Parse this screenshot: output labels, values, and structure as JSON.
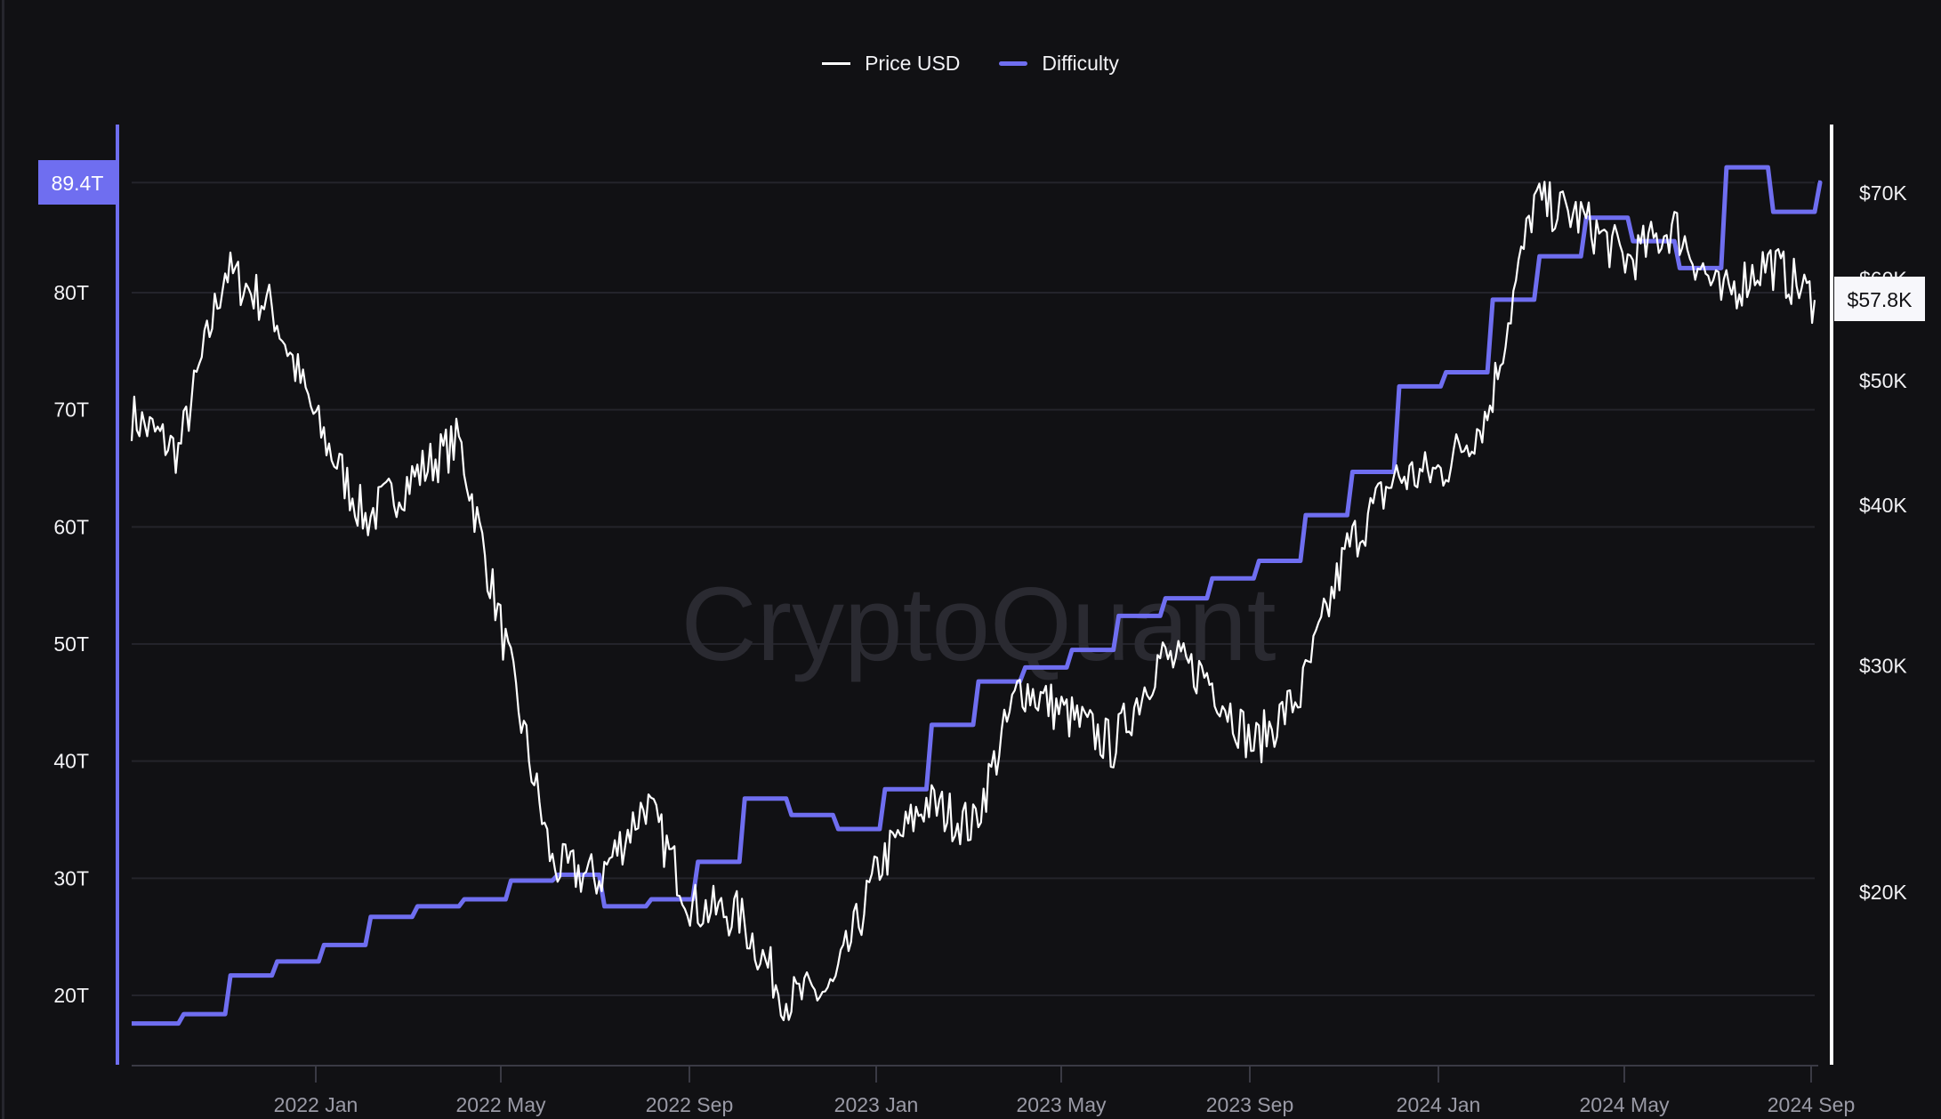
{
  "legend": {
    "items": [
      {
        "label": "Price USD",
        "color": "#ffffff"
      },
      {
        "label": "Difficulty",
        "color": "#6f6ef0"
      }
    ]
  },
  "watermark": "CryptoQuant",
  "left_axis": {
    "ticks": [
      "20T",
      "30T",
      "40T",
      "50T",
      "60T",
      "70T",
      "80T"
    ],
    "current_value_badge": "89.4T",
    "color": "#6f6ef0"
  },
  "right_axis": {
    "ticks": [
      "$20K",
      "$30K",
      "$40K",
      "$50K",
      "$60K",
      "$70K"
    ],
    "current_value_badge": "$57.8K",
    "color": "#ffffff"
  },
  "x_axis": {
    "ticks": [
      "2022 Jan",
      "2022 May",
      "2022 Sep",
      "2023 Jan",
      "2023 May",
      "2023 Sep",
      "2024 Jan",
      "2024 May",
      "2024 Sep"
    ]
  },
  "chart_data": {
    "type": "line",
    "title": "",
    "xlabel": "",
    "ylabel_left": "Difficulty",
    "ylabel_right": "Price USD",
    "legend_position": "top-center",
    "grid": true,
    "left_ylim": [
      15,
      92
    ],
    "right_yscale": "log",
    "right_ylim": [
      15000,
      78000
    ],
    "x": [
      "2021 Sep",
      "2021 Oct",
      "2021 Nov",
      "2021 Dec",
      "2022 Jan",
      "2022 Feb",
      "2022 Mar",
      "2022 Apr",
      "2022 May",
      "2022 Jun",
      "2022 Jul",
      "2022 Aug",
      "2022 Sep",
      "2022 Oct",
      "2022 Nov",
      "2022 Dec",
      "2023 Jan",
      "2023 Feb",
      "2023 Mar",
      "2023 Apr",
      "2023 May",
      "2023 Jun",
      "2023 Jul",
      "2023 Aug",
      "2023 Sep",
      "2023 Oct",
      "2023 Nov",
      "2023 Dec",
      "2024 Jan",
      "2024 Feb",
      "2024 Mar",
      "2024 Apr",
      "2024 May",
      "2024 Jun",
      "2024 Jul",
      "2024 Aug",
      "2024 Sep"
    ],
    "series": [
      {
        "name": "Price USD",
        "axis": "right",
        "color": "#ffffff",
        "values": [
          47000,
          44000,
          61000,
          57000,
          46000,
          39000,
          42000,
          45000,
          31000,
          21000,
          20500,
          23500,
          19500,
          19200,
          16500,
          16800,
          21000,
          23500,
          22500,
          29000,
          27500,
          26000,
          30500,
          29500,
          26000,
          28500,
          37000,
          42000,
          42500,
          47000,
          69000,
          67000,
          62000,
          66000,
          58000,
          62000,
          57800
        ]
      },
      {
        "name": "Difficulty",
        "axis": "left",
        "color": "#6f6ef0",
        "values": [
          17.6,
          18.4,
          21.7,
          22.9,
          24.3,
          26.7,
          27.6,
          28.2,
          29.8,
          30.3,
          27.6,
          28.2,
          31.4,
          36.8,
          35.4,
          34.2,
          37.6,
          43.1,
          46.8,
          48.0,
          49.5,
          52.4,
          53.9,
          55.6,
          57.1,
          61.0,
          64.7,
          72.0,
          73.2,
          79.4,
          83.1,
          86.4,
          84.4,
          82.1,
          90.7,
          86.9,
          89.4
        ]
      }
    ],
    "current_values": {
      "Difficulty": "89.4T",
      "Price USD": "$57.8K"
    }
  }
}
